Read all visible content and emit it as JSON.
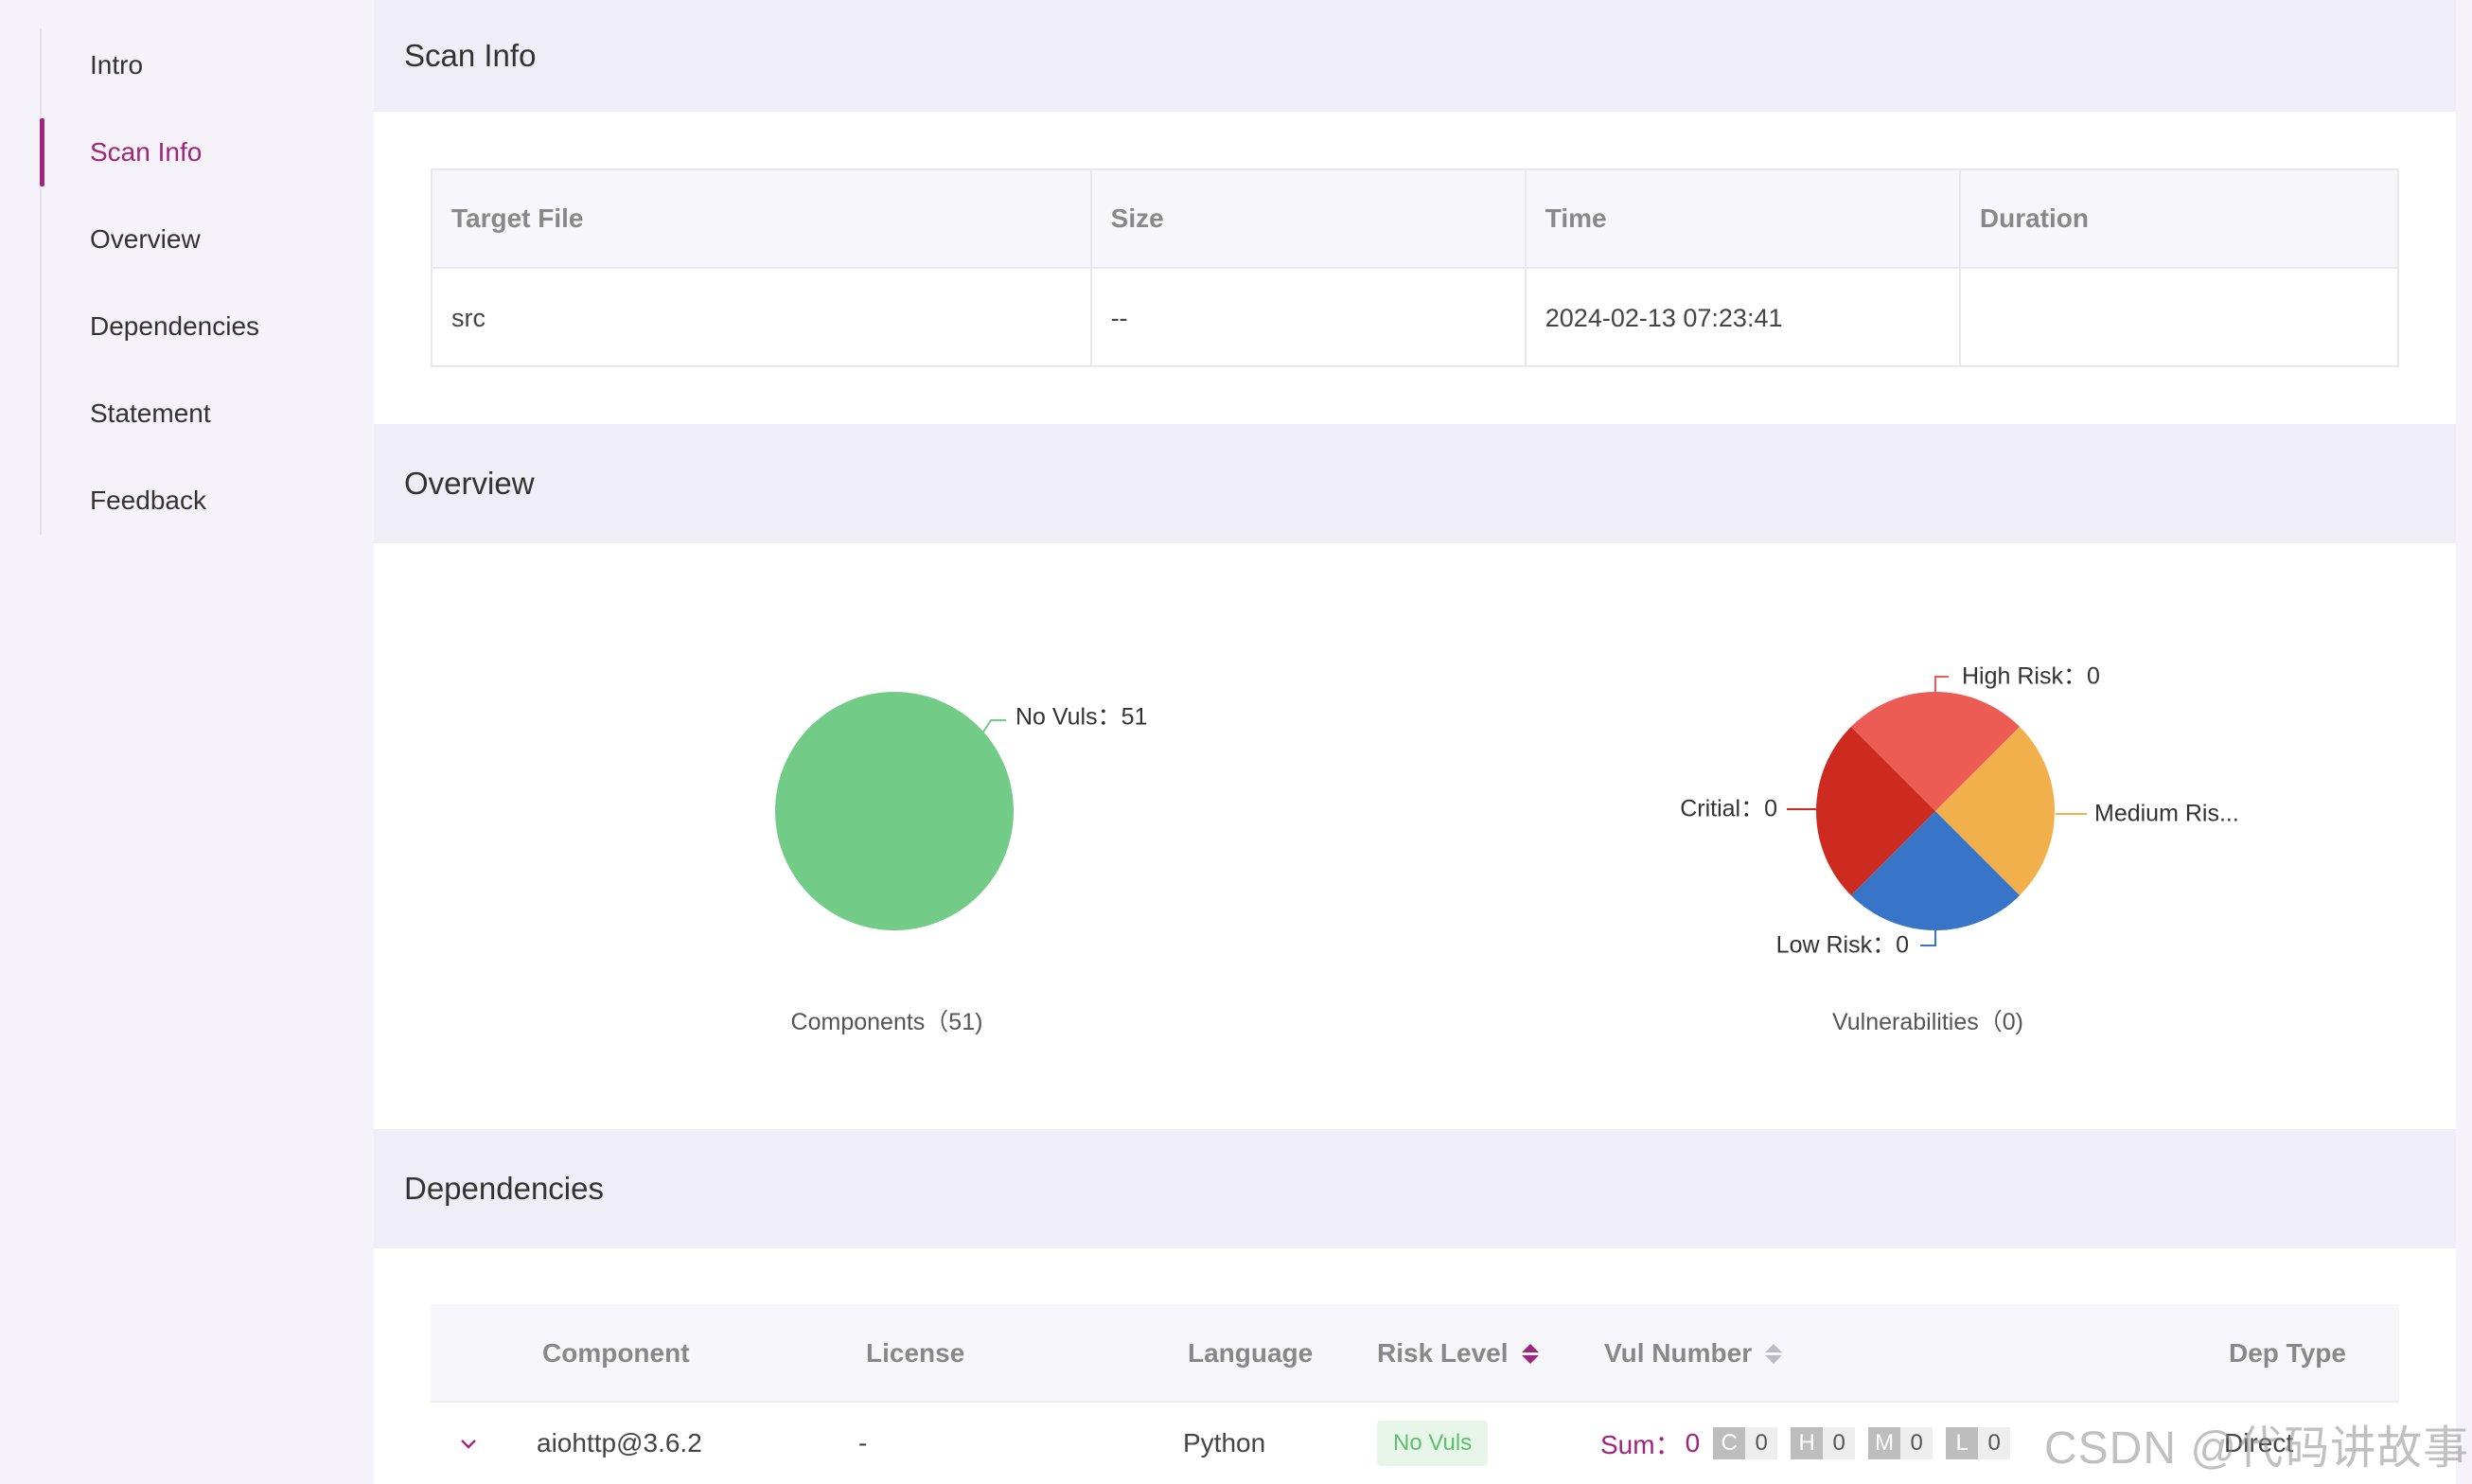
{
  "sidebar": {
    "items": [
      {
        "label": "Intro",
        "active": false
      },
      {
        "label": "Scan Info",
        "active": true
      },
      {
        "label": "Overview",
        "active": false
      },
      {
        "label": "Dependencies",
        "active": false
      },
      {
        "label": "Statement",
        "active": false
      },
      {
        "label": "Feedback",
        "active": false
      }
    ]
  },
  "sections": {
    "scan_info": "Scan Info",
    "overview": "Overview",
    "dependencies": "Dependencies"
  },
  "scan_table": {
    "headers": [
      "Target File",
      "Size",
      "Time",
      "Duration"
    ],
    "row": [
      "src",
      "--",
      "2024-02-13 07:23:41",
      ""
    ]
  },
  "chart_data": [
    {
      "type": "pie",
      "title": "Components（51)",
      "slices": [
        {
          "label": "No Vuls：51",
          "value": 51,
          "color": "#72cb86"
        }
      ]
    },
    {
      "type": "pie",
      "title": "Vulnerabilities（0)",
      "slices": [
        {
          "label": "High Risk：0",
          "value": 0,
          "color": "#ec5b54"
        },
        {
          "label": "Medium Ris...",
          "value": 0,
          "color": "#f2b04d"
        },
        {
          "label": "Low Risk：0",
          "value": 0,
          "color": "#3874c8"
        },
        {
          "label": "Critial：0",
          "value": 0,
          "color": "#cd2b20"
        }
      ]
    }
  ],
  "dep_table": {
    "headers": {
      "component": "Component",
      "license": "License",
      "language": "Language",
      "risk_level": "Risk Level",
      "vul_number": "Vul Number",
      "dep_type": "Dep Type"
    },
    "row": {
      "component": "aiohttp@3.6.2",
      "license": "-",
      "language": "Python",
      "risk": "No Vuls",
      "sum_label": "Sum：",
      "sum_value": "0",
      "counts": [
        {
          "key": "C",
          "value": "0"
        },
        {
          "key": "H",
          "value": "0"
        },
        {
          "key": "M",
          "value": "0"
        },
        {
          "key": "L",
          "value": "0"
        }
      ],
      "dep_type": "Direct"
    }
  },
  "watermark": "CSDN @代码讲故事",
  "colors": {
    "accent": "#a0237c"
  }
}
